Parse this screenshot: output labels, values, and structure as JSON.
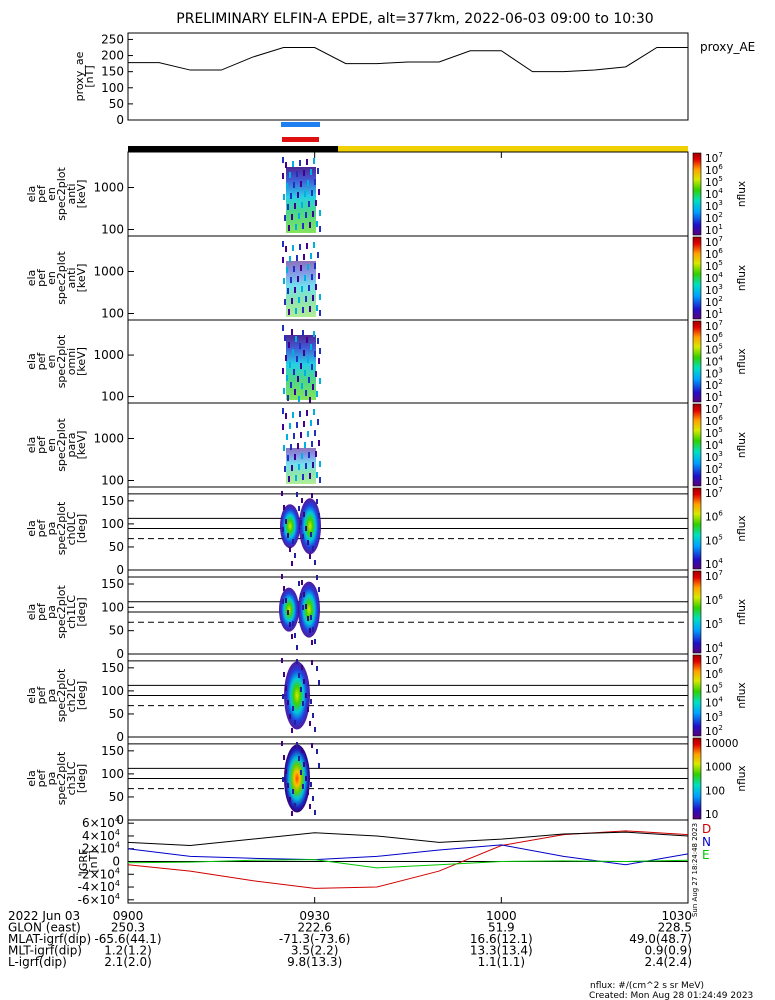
{
  "title": "PRELIMINARY ELFIN-A EPDE, alt=377km, 2022-06-03 09:00 to 10:30",
  "chart_data": [
    {
      "type": "line",
      "panel": "proxy_ae",
      "ylabel_lines": [
        "proxy_ae",
        "[nT]"
      ],
      "legend": "proxy_AE",
      "y_ticks": [
        "0",
        "50",
        "100",
        "150",
        "200",
        "250"
      ],
      "ylim": [
        0,
        270
      ],
      "x_minutes": [
        0,
        5,
        10,
        15,
        20,
        25,
        30,
        35,
        40,
        45,
        50,
        55,
        60,
        65,
        70,
        75,
        80,
        85,
        90
      ],
      "values": [
        178,
        178,
        155,
        155,
        195,
        225,
        225,
        175,
        175,
        180,
        180,
        215,
        215,
        150,
        150,
        155,
        165,
        225,
        225
      ]
    },
    {
      "type": "heatmap",
      "panel": "en-anti",
      "ylabel_lines": [
        "ela",
        "pef",
        "en",
        "spec2plot",
        "anti",
        "[keV]"
      ],
      "y_ticks": [
        "100",
        "1000"
      ],
      "colorbar_ticks": [
        "10",
        "10",
        "10",
        "10",
        "10",
        "10",
        "10"
      ],
      "colorbar_exps": [
        "1",
        "2",
        "3",
        "4",
        "5",
        "6",
        "7"
      ],
      "colorbar_label": "nflux"
    },
    {
      "type": "heatmap",
      "panel": "en-perp",
      "ylabel_lines": [
        "ela",
        "pef",
        "en",
        "spec2plot",
        "anti",
        "[keV]"
      ],
      "y_ticks": [
        "100",
        "1000"
      ],
      "colorbar_ticks": [
        "10",
        "10",
        "10",
        "10",
        "10",
        "10",
        "10"
      ],
      "colorbar_exps": [
        "1",
        "2",
        "3",
        "4",
        "5",
        "6",
        "7"
      ],
      "colorbar_label": "nflux"
    },
    {
      "type": "heatmap",
      "panel": "en-omni",
      "ylabel_lines": [
        "ela",
        "pef",
        "en",
        "spec2plot",
        "omni",
        "[keV]"
      ],
      "y_ticks": [
        "100",
        "1000"
      ],
      "colorbar_ticks": [
        "10",
        "10",
        "10",
        "10",
        "10",
        "10",
        "10"
      ],
      "colorbar_exps": [
        "1",
        "2",
        "3",
        "4",
        "5",
        "6",
        "7"
      ],
      "colorbar_label": "nflux"
    },
    {
      "type": "heatmap",
      "panel": "en-para",
      "ylabel_lines": [
        "ela",
        "pef",
        "en",
        "spec2plot",
        "para",
        "[keV]"
      ],
      "y_ticks": [
        "100",
        "1000"
      ],
      "colorbar_ticks": [
        "10",
        "10",
        "10",
        "10",
        "10",
        "10",
        "10"
      ],
      "colorbar_exps": [
        "1",
        "2",
        "3",
        "4",
        "5",
        "6",
        "7"
      ],
      "colorbar_label": "nflux"
    },
    {
      "type": "heatmap",
      "panel": "pa-ch0",
      "ylabel_lines": [
        "ela",
        "pef",
        "pa",
        "spec2plot",
        "ch0LC",
        "[deg]"
      ],
      "y_ticks": [
        "0",
        "50",
        "100",
        "150"
      ],
      "colorbar_ticks": [
        "10",
        "10",
        "10",
        "10"
      ],
      "colorbar_exps": [
        "4",
        "5",
        "6",
        "7"
      ],
      "colorbar_label": "nflux"
    },
    {
      "type": "heatmap",
      "panel": "pa-ch1",
      "ylabel_lines": [
        "ela",
        "pef",
        "pa",
        "spec2plot",
        "ch1LC",
        "[deg]"
      ],
      "y_ticks": [
        "0",
        "50",
        "100",
        "150"
      ],
      "colorbar_ticks": [
        "10",
        "10",
        "10",
        "10"
      ],
      "colorbar_exps": [
        "4",
        "5",
        "6",
        "7"
      ],
      "colorbar_label": "nflux"
    },
    {
      "type": "heatmap",
      "panel": "pa-ch2",
      "ylabel_lines": [
        "ela",
        "pef",
        "pa",
        "spec2plot",
        "ch2LC",
        "[deg]"
      ],
      "y_ticks": [
        "0",
        "50",
        "100",
        "150"
      ],
      "colorbar_ticks": [
        "10",
        "10",
        "10",
        "10",
        "10",
        "10"
      ],
      "colorbar_exps": [
        "2",
        "3",
        "4",
        "5",
        "6",
        "7"
      ],
      "colorbar_label": "nflux"
    },
    {
      "type": "heatmap",
      "panel": "pa-ch3",
      "ylabel_lines": [
        "ela",
        "pef",
        "pa",
        "spec2plot",
        "ch3LC",
        "[deg]"
      ],
      "y_ticks": [
        "0",
        "50",
        "100",
        "150"
      ],
      "colorbar_ticks": [
        "10",
        "100",
        "1000",
        "10000"
      ],
      "colorbar_exps": [
        "",
        "",
        "",
        ""
      ],
      "colorbar_label": "nflux"
    },
    {
      "type": "line",
      "panel": "igrf",
      "ylabel_lines": [
        "IGRF",
        "[nT]"
      ],
      "y_ticks": [
        "-6×10",
        "-4×10",
        "-2×10",
        "0",
        "2×10",
        "4×10",
        "6×10"
      ],
      "y_tick_exp": "4",
      "ylim": [
        -65000,
        65000
      ],
      "x_minutes": [
        0,
        10,
        20,
        30,
        40,
        50,
        60,
        70,
        80,
        90
      ],
      "series": [
        {
          "name": "D",
          "color": "#d00000",
          "values": [
            -5000,
            -15000,
            -30000,
            -42000,
            -40000,
            -15000,
            25000,
            42000,
            48000,
            42000
          ]
        },
        {
          "name": "N",
          "color": "#0000c8",
          "values": [
            20000,
            8000,
            5000,
            3000,
            8000,
            18000,
            26000,
            8000,
            -5000,
            12000
          ]
        },
        {
          "name": "E",
          "color": "#00c800",
          "values": [
            -2000,
            -1000,
            2000,
            3000,
            -10000,
            -5000,
            0,
            1000,
            0,
            2000
          ]
        },
        {
          "name": "",
          "color": "#000000",
          "values": [
            30000,
            25000,
            35000,
            45000,
            40000,
            30000,
            35000,
            43000,
            46000,
            40000
          ]
        }
      ]
    }
  ],
  "bottom_labels": {
    "rows": [
      {
        "label": "2022 Jun 03",
        "values": [
          "0900",
          "0930",
          "1000",
          "1030"
        ]
      },
      {
        "label": "GLON (east)",
        "values": [
          "250.3",
          "222.6",
          "51.9",
          "228.5"
        ]
      },
      {
        "label": "MLAT-igrf(dip)",
        "values": [
          "-65.6(44.1)",
          "-71.3(-73.6)",
          "16.6(12.1)",
          "49.0(48.7)"
        ]
      },
      {
        "label": "MLT-igrf(dip)",
        "values": [
          "1.2(1.2)",
          "3.5(2.2)",
          "13.3(13.4)",
          "0.9(0.9)"
        ]
      },
      {
        "label": "L-igrf(dip)",
        "values": [
          "2.1(2.0)",
          "9.8(13.3)",
          "1.1(1.1)",
          "2.4(2.4)"
        ]
      }
    ]
  },
  "footer": {
    "units": "nflux: #/(cm^2 s sr MeV)",
    "created": "Created: Mon Aug 28 01:24:49 2023",
    "side_stamp": "Sun Aug 27 18:24:48 2023"
  }
}
